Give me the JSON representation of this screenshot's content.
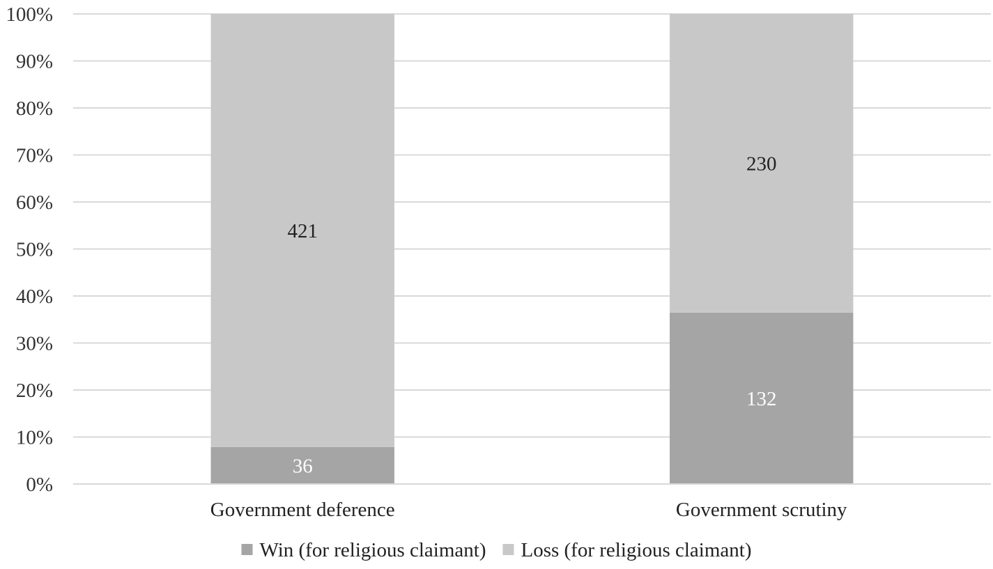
{
  "chart_data": {
    "type": "bar",
    "stacked": true,
    "normalized": true,
    "categories": [
      "Government deference",
      "Government scrutiny"
    ],
    "series": [
      {
        "name": "Win (for religious claimant)",
        "values": [
          36,
          132
        ],
        "color": "#a5a5a5",
        "label_color": "#ffffff"
      },
      {
        "name": "Loss (for religious claimant)",
        "values": [
          421,
          230
        ],
        "color": "#c8c8c8",
        "label_color": "#222222"
      }
    ],
    "y_ticks": [
      "0%",
      "10%",
      "20%",
      "30%",
      "40%",
      "50%",
      "60%",
      "70%",
      "80%",
      "90%",
      "100%"
    ],
    "ylim": [
      0,
      100
    ],
    "grid": true,
    "legend_position": "bottom",
    "grid_color": "#d9d9d9",
    "axis_color": "#d9d9d9",
    "title": "",
    "xlabel": "",
    "ylabel": ""
  }
}
